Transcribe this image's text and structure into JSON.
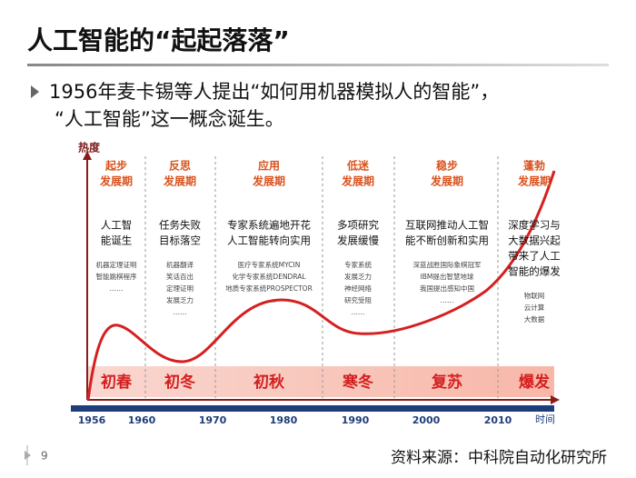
{
  "header": {
    "title": "人工智能的“起起落落”"
  },
  "bullet": {
    "lines": [
      "1956年麦卡锡等人提出“如何用机器模拟人的智能”，",
      "“人工智能”这一概念诞生。"
    ]
  },
  "diagram": {
    "y_axis_label": "热度",
    "x_axis_label": "时间",
    "x_ticks": [
      "1956",
      "1960",
      "1970",
      "1980",
      "1990",
      "2000",
      "2010"
    ],
    "phases": [
      {
        "stage": "起步",
        "period": "发展期",
        "event": [
          "人工智",
          "能诞生"
        ],
        "details": [
          "机器定理证明",
          "智能跳棋程序",
          "……"
        ],
        "label": "初春"
      },
      {
        "stage": "反思",
        "period": "发展期",
        "event": [
          "任务失败",
          "目标落空"
        ],
        "details": [
          "机器翻译",
          "笑话百出",
          "定理证明",
          "发展乏力",
          "……"
        ],
        "label": "初冬"
      },
      {
        "stage": "应用",
        "period": "发展期",
        "event": [
          "专家系统遍地开花",
          "人工智能转向实用"
        ],
        "details": [
          "医疗专家系统MYCIN",
          "化学专家系统DENDRAL",
          "地质专家系统PROSPECTOR",
          "……"
        ],
        "label": "初秋"
      },
      {
        "stage": "低迷",
        "period": "发展期",
        "event": [
          "多项研究",
          "发展缓慢"
        ],
        "details": [
          "专家系统",
          "发展乏力",
          "神经网络",
          "研究受阻",
          "……"
        ],
        "label": "寒冬"
      },
      {
        "stage": "稳步",
        "period": "发展期",
        "event": [
          "互联网推动人工智",
          "能不断创新和实用"
        ],
        "details": [
          "深蓝战胜国际象棋冠军",
          "IBM提出智慧地球",
          "我国提出感知中国",
          "……"
        ],
        "label": "复苏"
      },
      {
        "stage": "蓬勃",
        "period": "发展期",
        "event": [
          "深度学习与",
          "大数据兴起",
          "带来了人工",
          "智能的爆发"
        ],
        "details": [
          "物联网",
          "云计算",
          "大数据"
        ],
        "label": "爆发"
      }
    ]
  },
  "footer": {
    "page": "9",
    "source": "资料来源：中科院自动化研究所"
  }
}
